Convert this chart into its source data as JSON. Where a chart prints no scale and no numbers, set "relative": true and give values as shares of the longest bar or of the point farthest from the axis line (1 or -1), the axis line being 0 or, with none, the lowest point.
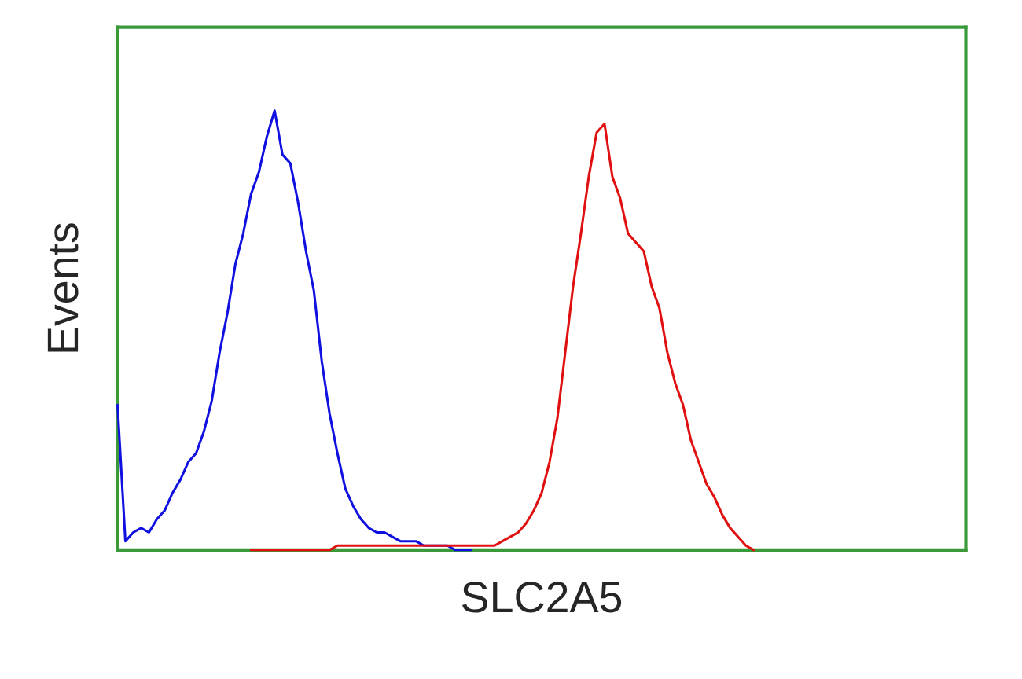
{
  "chart_data": {
    "type": "line",
    "xlabel": "SLC2A5",
    "ylabel": "Events",
    "relative": true,
    "grid": false,
    "tick_labels": false,
    "marker": "none",
    "line_style": "solid",
    "categories": [
      null,
      null,
      null,
      null,
      null,
      null,
      null,
      null,
      null,
      null,
      null,
      null,
      null,
      null,
      null,
      null,
      null,
      null,
      null,
      null,
      null,
      null,
      null,
      null,
      null,
      null,
      null,
      null,
      null,
      null,
      null,
      null,
      null,
      null,
      null,
      null,
      null,
      null,
      null,
      null,
      null,
      null,
      null,
      null,
      null,
      null,
      null,
      null,
      null,
      null,
      null,
      null,
      null,
      null,
      null,
      null,
      null,
      null,
      null,
      null,
      null,
      null,
      null,
      null,
      null,
      null,
      null,
      null,
      null,
      null,
      null,
      null,
      null,
      null,
      null,
      null,
      null,
      null,
      null,
      null,
      null,
      null,
      null,
      null,
      null,
      null,
      null,
      null,
      null,
      null,
      null,
      null,
      null,
      null,
      null,
      null,
      null,
      null,
      null,
      null,
      null,
      null,
      null,
      null,
      null,
      null,
      null,
      null,
      null
    ],
    "series": [
      {
        "color": "#1010e0",
        "values": [
          0.33,
          0.02,
          0.04,
          0.05,
          0.04,
          0.07,
          0.09,
          0.13,
          0.16,
          0.2,
          0.22,
          0.27,
          0.34,
          0.45,
          0.54,
          0.65,
          0.72,
          0.81,
          0.86,
          0.94,
          1.0,
          0.9,
          0.88,
          0.79,
          0.68,
          0.59,
          0.43,
          0.31,
          0.22,
          0.14,
          0.1,
          0.07,
          0.05,
          0.04,
          0.04,
          0.03,
          0.02,
          0.02,
          0.02,
          0.01,
          0.01,
          0.01,
          0.01,
          0,
          0,
          0,
          null,
          null,
          null,
          null,
          null,
          null,
          null,
          null,
          null,
          null,
          null,
          null,
          null,
          null,
          null,
          null,
          null,
          null,
          null,
          null,
          null,
          null,
          null,
          null,
          null,
          null,
          null,
          null,
          null,
          null,
          null,
          null,
          null,
          null,
          null,
          null,
          null,
          null,
          null,
          null,
          null,
          null,
          null,
          null,
          null,
          null,
          null,
          null,
          null,
          null,
          null,
          null,
          null,
          null,
          null,
          null,
          null,
          null,
          null,
          null,
          null,
          null,
          null
        ]
      },
      {
        "color": "#e01010",
        "values": [
          null,
          null,
          null,
          null,
          null,
          null,
          null,
          null,
          null,
          null,
          null,
          null,
          null,
          null,
          null,
          null,
          null,
          0,
          0,
          0,
          0,
          0,
          0,
          0,
          0,
          0,
          0,
          0,
          0.01,
          0.01,
          0.01,
          0.01,
          0.01,
          0.01,
          0.01,
          0.01,
          0.01,
          0.01,
          0.01,
          0.01,
          0.01,
          0.01,
          0.01,
          0.01,
          0.01,
          0.01,
          0.01,
          0.01,
          0.01,
          0.02,
          0.03,
          0.04,
          0.06,
          0.09,
          0.13,
          0.2,
          0.3,
          0.45,
          0.6,
          0.72,
          0.85,
          0.95,
          0.97,
          0.85,
          0.8,
          0.72,
          0.7,
          0.68,
          0.6,
          0.55,
          0.45,
          0.38,
          0.33,
          0.25,
          0.2,
          0.15,
          0.12,
          0.08,
          0.05,
          0.03,
          0.01,
          0,
          null,
          null,
          null,
          null,
          null,
          null,
          null,
          null,
          null,
          null,
          null,
          null,
          null,
          null,
          null,
          null,
          null,
          null,
          null,
          null,
          null,
          null,
          null,
          null,
          null,
          null,
          null
        ]
      }
    ]
  }
}
